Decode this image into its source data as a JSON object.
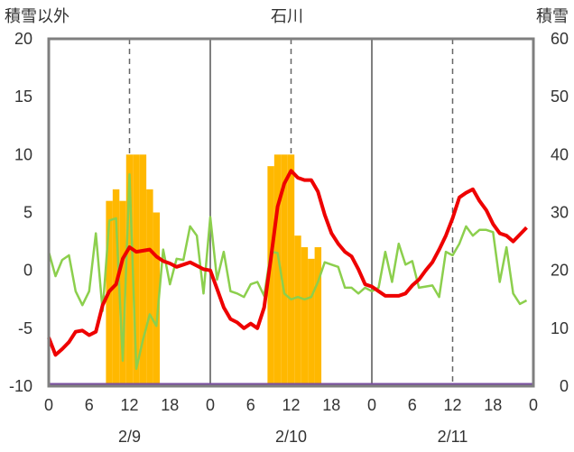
{
  "chart_data": {
    "type": "bar+line",
    "title": "石川",
    "ylabel_left": "積雪以外",
    "ylabel_right": "積雪",
    "ylim_left": [
      -10,
      20
    ],
    "ylim_right": [
      0,
      60
    ],
    "yticks_left": [
      "20",
      "15",
      "10",
      "5",
      "0",
      "-5",
      "-10"
    ],
    "yticks_right": [
      "60",
      "50",
      "40",
      "30",
      "20",
      "10",
      "0"
    ],
    "x_hour_ticks": [
      "0",
      "6",
      "12",
      "18",
      "0",
      "6",
      "12",
      "18",
      "0",
      "6",
      "12",
      "18",
      "0"
    ],
    "day_labels": [
      "2/9",
      "2/10",
      "2/11"
    ],
    "xlim_hours": [
      0,
      72
    ],
    "grid": "dashed vertical at 12h, solid at day boundaries",
    "colors": {
      "bars": "#ffb800",
      "red": "#ee0000",
      "green": "#8ccf4d",
      "baseline": "#7a4fa0",
      "frame": "#7f7f7f"
    },
    "snow_depth_bars": {
      "unit": "right axis",
      "x_hours": [
        9,
        10,
        11,
        12,
        13,
        14,
        15,
        16,
        33,
        34,
        35,
        36,
        37,
        38,
        39,
        40
      ],
      "values": [
        32,
        34,
        32,
        40,
        40,
        40,
        34,
        30,
        38,
        40,
        40,
        40,
        26,
        24,
        22,
        24
      ]
    },
    "red_series": {
      "unit": "left axis",
      "x": [
        0,
        1,
        2,
        3,
        4,
        5,
        6,
        7,
        8,
        9,
        10,
        11,
        12,
        13,
        14,
        15,
        16,
        17,
        18,
        19,
        20,
        21,
        22,
        23,
        24,
        25,
        26,
        27,
        28,
        29,
        30,
        31,
        32,
        33,
        34,
        35,
        36,
        37,
        38,
        39,
        40,
        41,
        42,
        43,
        44,
        45,
        46,
        47,
        48,
        49,
        50,
        51,
        52,
        53,
        54,
        55,
        56,
        57,
        58,
        59,
        60,
        61,
        62,
        63,
        64,
        65,
        66,
        67,
        68,
        69,
        70,
        71
      ],
      "values": [
        -5.8,
        -7.3,
        -6.8,
        -6.2,
        -5.3,
        -5.2,
        -5.6,
        -5.3,
        -3.0,
        -1.8,
        -1.2,
        1.0,
        2.0,
        1.6,
        1.7,
        1.8,
        1.2,
        0.8,
        0.6,
        0.3,
        0.5,
        0.7,
        0.4,
        0.1,
        0.0,
        -1.6,
        -3.2,
        -4.2,
        -4.5,
        -5.0,
        -4.6,
        -5.0,
        -3.2,
        1.0,
        5.5,
        7.5,
        8.6,
        8.0,
        7.8,
        7.8,
        6.8,
        4.8,
        3.2,
        2.3,
        1.6,
        1.2,
        0.1,
        -1.2,
        -1.4,
        -1.8,
        -2.2,
        -2.2,
        -2.2,
        -2.0,
        -1.3,
        -0.8,
        0.0,
        0.7,
        1.8,
        3.0,
        4.5,
        6.3,
        6.7,
        7.0,
        6.0,
        5.2,
        4.0,
        3.2,
        3.0,
        2.5,
        3.1,
        3.7
      ]
    },
    "green_series": {
      "unit": "left axis",
      "x": [
        0,
        1,
        2,
        3,
        4,
        5,
        6,
        7,
        8,
        9,
        10,
        11,
        12,
        13,
        14,
        15,
        16,
        17,
        18,
        19,
        20,
        21,
        22,
        23,
        24,
        25,
        26,
        27,
        28,
        29,
        30,
        31,
        32,
        33,
        34,
        35,
        36,
        37,
        38,
        39,
        40,
        41,
        42,
        43,
        44,
        45,
        46,
        47,
        48,
        49,
        50,
        51,
        52,
        53,
        54,
        55,
        56,
        57,
        58,
        59,
        60,
        61,
        62,
        63,
        64,
        65,
        66,
        67,
        68,
        69,
        70,
        71
      ],
      "values": [
        1.6,
        -0.5,
        0.9,
        1.3,
        -1.8,
        -3.0,
        -1.8,
        3.2,
        -3.5,
        4.3,
        4.5,
        -7.8,
        8.3,
        -8.5,
        -6.0,
        -3.8,
        -4.8,
        1.8,
        -1.2,
        1.0,
        0.9,
        3.8,
        3.0,
        -2.0,
        4.6,
        -0.8,
        1.6,
        -1.8,
        -2.0,
        -2.3,
        -1.2,
        -1.0,
        -2.2,
        1.6,
        1.5,
        -2.0,
        -2.5,
        -2.3,
        -2.5,
        -2.3,
        -1.0,
        0.7,
        0.5,
        0.3,
        -1.5,
        -1.5,
        -2.0,
        -1.5,
        -1.8,
        -1.5,
        1.6,
        -1.0,
        2.3,
        0.5,
        0.8,
        -1.5,
        -1.4,
        -1.3,
        -2.3,
        1.6,
        1.3,
        2.3,
        3.8,
        3.0,
        3.5,
        3.5,
        3.3,
        -1.0,
        2.0,
        -2.0,
        -2.9,
        -2.6
      ]
    }
  }
}
